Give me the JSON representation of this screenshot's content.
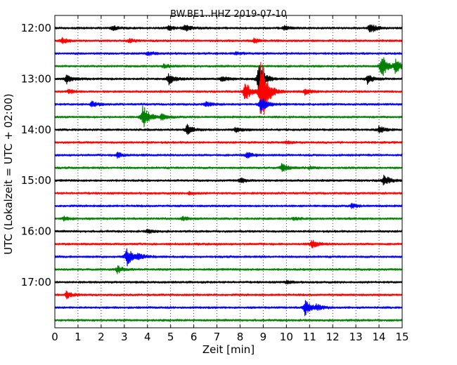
{
  "chart_data": {
    "type": "line",
    "title": "BW.BE1..HHZ 2019-07-10",
    "xlabel": "Zeit  [min]",
    "ylabel": "UTC (Lokalzeit = UTC + 02:00)",
    "xlim": [
      0,
      15
    ],
    "x_ticks": [
      "0",
      "1",
      "2",
      "3",
      "4",
      "5",
      "6",
      "7",
      "8",
      "9",
      "10",
      "11",
      "12",
      "13",
      "14",
      "15"
    ],
    "y_ticks": [
      "12:00",
      "13:00",
      "14:00",
      "15:00",
      "16:00",
      "17:00"
    ],
    "grid": "vertical dotted",
    "trace_interval_min": 15,
    "trace_colors": [
      "#000000",
      "#ff0000",
      "#0000ff",
      "#008000"
    ],
    "series": [
      {
        "start": "12:00",
        "color": "#000000",
        "events": [
          {
            "x": 2.5,
            "amp": 3
          },
          {
            "x": 4.9,
            "amp": 4
          },
          {
            "x": 5.6,
            "amp": 5
          },
          {
            "x": 9.9,
            "amp": 3
          },
          {
            "x": 13.6,
            "amp": 8
          }
        ]
      },
      {
        "start": "12:15",
        "color": "#ff0000",
        "events": [
          {
            "x": 0.3,
            "amp": 4
          },
          {
            "x": 3.2,
            "amp": 3
          },
          {
            "x": 8.6,
            "amp": 3
          }
        ]
      },
      {
        "start": "12:30",
        "color": "#0000ff",
        "events": [
          {
            "x": 4.0,
            "amp": 3
          },
          {
            "x": 7.8,
            "amp": 2
          }
        ]
      },
      {
        "start": "12:45",
        "color": "#008000",
        "events": [
          {
            "x": 4.7,
            "amp": 3
          },
          {
            "x": 14.1,
            "amp": 18
          },
          {
            "x": 14.7,
            "amp": 9
          }
        ]
      },
      {
        "start": "13:00",
        "color": "#000000",
        "events": [
          {
            "x": 0.5,
            "amp": 7
          },
          {
            "x": 4.9,
            "amp": 9
          },
          {
            "x": 7.2,
            "amp": 5
          },
          {
            "x": 8.8,
            "amp": 25
          },
          {
            "x": 13.5,
            "amp": 7
          }
        ]
      },
      {
        "start": "13:15",
        "color": "#ff0000",
        "events": [
          {
            "x": 0.6,
            "amp": 3
          },
          {
            "x": 8.2,
            "amp": 15
          },
          {
            "x": 8.9,
            "amp": 60
          },
          {
            "x": 10.8,
            "amp": 4
          }
        ]
      },
      {
        "start": "13:30",
        "color": "#0000ff",
        "events": [
          {
            "x": 1.6,
            "amp": 4
          },
          {
            "x": 6.5,
            "amp": 4
          },
          {
            "x": 8.9,
            "amp": 12
          }
        ]
      },
      {
        "start": "13:45",
        "color": "#008000",
        "events": [
          {
            "x": 3.8,
            "amp": 18
          },
          {
            "x": 4.6,
            "amp": 4
          }
        ]
      },
      {
        "start": "14:00",
        "color": "#000000",
        "events": [
          {
            "x": 5.7,
            "amp": 7
          },
          {
            "x": 7.8,
            "amp": 4
          },
          {
            "x": 14.0,
            "amp": 5
          }
        ]
      },
      {
        "start": "14:15",
        "color": "#ff0000",
        "events": [
          {
            "x": 10.0,
            "amp": 2
          }
        ]
      },
      {
        "start": "14:30",
        "color": "#0000ff",
        "events": [
          {
            "x": 2.7,
            "amp": 4
          },
          {
            "x": 8.3,
            "amp": 4
          }
        ]
      },
      {
        "start": "14:45",
        "color": "#008000",
        "events": [
          {
            "x": 9.8,
            "amp": 6
          },
          {
            "x": 11.0,
            "amp": 2
          }
        ]
      },
      {
        "start": "15:00",
        "color": "#000000",
        "events": [
          {
            "x": 8.0,
            "amp": 4
          },
          {
            "x": 14.2,
            "amp": 8
          }
        ]
      },
      {
        "start": "15:15",
        "color": "#ff0000",
        "events": [
          {
            "x": 5.8,
            "amp": 2
          }
        ]
      },
      {
        "start": "15:30",
        "color": "#0000ff",
        "events": [
          {
            "x": 12.8,
            "amp": 3
          }
        ]
      },
      {
        "start": "15:45",
        "color": "#008000",
        "events": [
          {
            "x": 0.4,
            "amp": 3
          },
          {
            "x": 5.5,
            "amp": 3
          },
          {
            "x": 10.3,
            "amp": 2
          }
        ]
      },
      {
        "start": "16:00",
        "color": "#000000",
        "events": [
          {
            "x": 4.0,
            "amp": 3
          }
        ]
      },
      {
        "start": "16:15",
        "color": "#ff0000",
        "events": [
          {
            "x": 11.1,
            "amp": 6
          }
        ]
      },
      {
        "start": "16:30",
        "color": "#0000ff",
        "events": [
          {
            "x": 3.1,
            "amp": 14
          },
          {
            "x": 3.6,
            "amp": 5
          }
        ]
      },
      {
        "start": "16:45",
        "color": "#008000",
        "events": [
          {
            "x": 2.7,
            "amp": 5
          }
        ]
      },
      {
        "start": "17:00",
        "color": "#000000",
        "events": [
          {
            "x": 10.0,
            "amp": 2
          }
        ]
      },
      {
        "start": "17:15",
        "color": "#ff0000",
        "events": [
          {
            "x": 0.5,
            "amp": 5
          }
        ]
      },
      {
        "start": "17:30",
        "color": "#0000ff",
        "events": [
          {
            "x": 10.8,
            "amp": 11
          },
          {
            "x": 11.3,
            "amp": 4
          }
        ]
      },
      {
        "start": "17:45",
        "color": "#008000",
        "events": []
      }
    ]
  }
}
